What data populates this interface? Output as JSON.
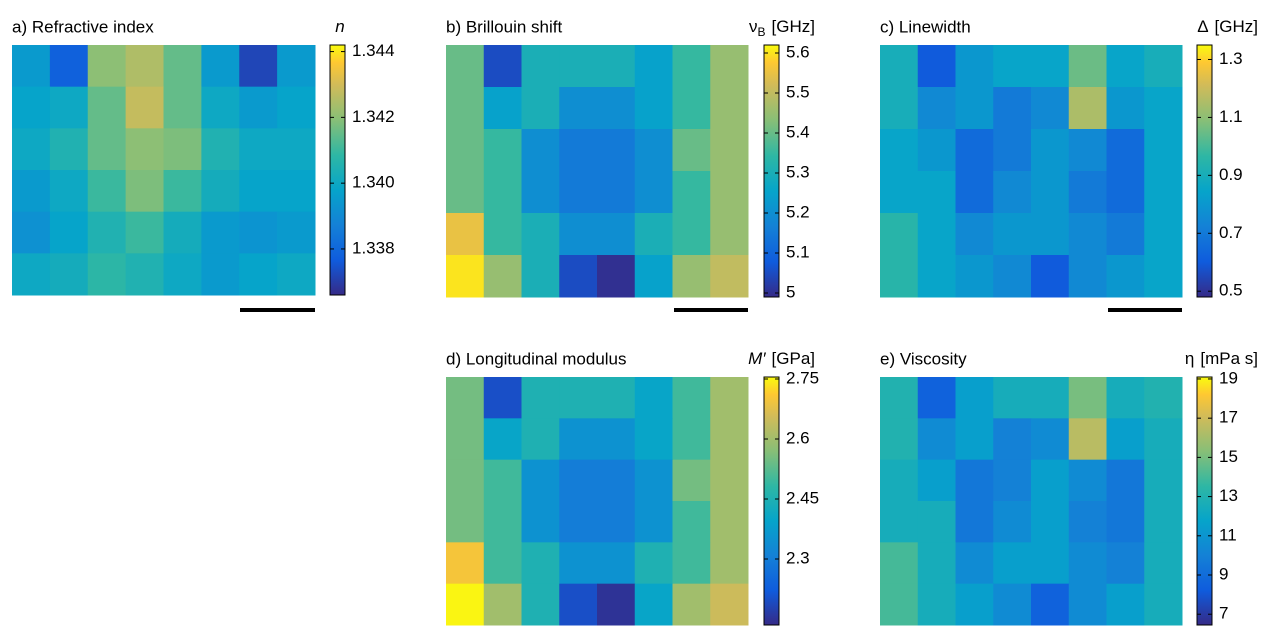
{
  "chart_data": [
    {
      "type": "heatmap",
      "title": "a) Refractive index",
      "colorbar_symbol": "n",
      "clim": [
        1.3366,
        1.3442
      ],
      "cticks": [
        {
          "value": 1.338,
          "label": "1.338"
        },
        {
          "value": 1.34,
          "label": "1.340"
        },
        {
          "value": 1.342,
          "label": "1.342"
        },
        {
          "value": 1.344,
          "label": "1.344"
        }
      ],
      "values": [
        [
          1.3395,
          1.3378,
          1.342,
          1.3425,
          1.3415,
          1.3395,
          1.3372,
          1.3395
        ],
        [
          1.3398,
          1.34,
          1.3415,
          1.3428,
          1.3415,
          1.34,
          1.3395,
          1.3398
        ],
        [
          1.34,
          1.3405,
          1.3415,
          1.342,
          1.3418,
          1.3405,
          1.34,
          1.34
        ],
        [
          1.3395,
          1.34,
          1.341,
          1.3418,
          1.341,
          1.3402,
          1.3398,
          1.3398
        ],
        [
          1.3392,
          1.3398,
          1.3405,
          1.341,
          1.3402,
          1.3395,
          1.3393,
          1.3395
        ],
        [
          1.34,
          1.3402,
          1.3408,
          1.3405,
          1.34,
          1.3395,
          1.3398,
          1.34
        ]
      ]
    },
    {
      "type": "heatmap",
      "title": "b) Brillouin shift",
      "colorbar_symbol": "ν",
      "colorbar_subscript": "B",
      "colorbar_unit": "[GHz]",
      "clim": [
        4.99,
        5.62
      ],
      "cticks": [
        5,
        5.1,
        5.2,
        5.3,
        5.4,
        5.5,
        5.6
      ],
      "values": [
        [
          5.4,
          5.05,
          5.3,
          5.3,
          5.3,
          5.25,
          5.35,
          5.45
        ],
        [
          5.4,
          5.25,
          5.3,
          5.2,
          5.2,
          5.25,
          5.35,
          5.45
        ],
        [
          5.4,
          5.35,
          5.2,
          5.15,
          5.15,
          5.2,
          5.4,
          5.45
        ],
        [
          5.4,
          5.35,
          5.2,
          5.15,
          5.15,
          5.2,
          5.35,
          5.45
        ],
        [
          5.55,
          5.35,
          5.3,
          5.2,
          5.2,
          5.3,
          5.35,
          5.45
        ],
        [
          5.6,
          5.45,
          5.3,
          5.05,
          5.0,
          5.25,
          5.45,
          5.5
        ]
      ]
    },
    {
      "type": "heatmap",
      "title": "c) Linewidth",
      "colorbar_symbol": "Δ",
      "colorbar_unit": "[GHz]",
      "clim": [
        0.48,
        1.35
      ],
      "cticks": [
        0.5,
        0.7,
        0.9,
        1.1,
        1.3
      ],
      "values": [
        [
          0.9,
          0.6,
          0.8,
          0.85,
          0.85,
          1.05,
          0.85,
          0.9
        ],
        [
          0.9,
          0.75,
          0.8,
          0.7,
          0.75,
          1.15,
          0.8,
          0.85
        ],
        [
          0.85,
          0.8,
          0.65,
          0.7,
          0.8,
          0.75,
          0.65,
          0.85
        ],
        [
          0.85,
          0.85,
          0.65,
          0.75,
          0.8,
          0.7,
          0.65,
          0.85
        ],
        [
          0.95,
          0.85,
          0.75,
          0.8,
          0.8,
          0.75,
          0.7,
          0.85
        ],
        [
          0.95,
          0.85,
          0.8,
          0.75,
          0.6,
          0.75,
          0.8,
          0.85
        ]
      ]
    },
    {
      "type": "heatmap",
      "title": "d) Longitudinal modulus",
      "colorbar_symbol": "M′",
      "colorbar_unit": "[GPa]",
      "clim": [
        2.135,
        2.755
      ],
      "cticks": [
        2.3,
        2.45,
        2.6,
        2.75
      ],
      "values": [
        [
          2.55,
          2.2,
          2.45,
          2.45,
          2.45,
          2.4,
          2.5,
          2.6
        ],
        [
          2.55,
          2.4,
          2.45,
          2.35,
          2.35,
          2.4,
          2.5,
          2.6
        ],
        [
          2.55,
          2.5,
          2.35,
          2.3,
          2.3,
          2.35,
          2.55,
          2.6
        ],
        [
          2.55,
          2.5,
          2.35,
          2.3,
          2.3,
          2.35,
          2.5,
          2.6
        ],
        [
          2.7,
          2.5,
          2.45,
          2.35,
          2.35,
          2.45,
          2.5,
          2.6
        ],
        [
          2.75,
          2.6,
          2.45,
          2.2,
          2.15,
          2.4,
          2.6,
          2.65
        ]
      ]
    },
    {
      "type": "heatmap",
      "title": "e) Viscosity",
      "colorbar_symbol": "η",
      "colorbar_unit": "[mPa s]",
      "clim": [
        6.45,
        19.1
      ],
      "cticks": [
        7,
        9,
        11,
        13,
        15,
        17,
        19
      ],
      "values": [
        [
          13,
          8.5,
          11.5,
          12.5,
          12.5,
          15,
          12.5,
          13
        ],
        [
          13,
          10.5,
          11.5,
          10,
          10.5,
          16.5,
          11.5,
          12.5
        ],
        [
          12.5,
          11.5,
          9.5,
          10,
          11.5,
          10.5,
          9.5,
          12.5
        ],
        [
          12.5,
          12.5,
          9.5,
          10.5,
          11.5,
          10,
          9.5,
          12.5
        ],
        [
          14,
          12.5,
          10.5,
          11.5,
          11.5,
          10.5,
          10,
          12.5
        ],
        [
          14,
          12.5,
          11.5,
          10.5,
          8.5,
          10.5,
          11.5,
          12.5
        ]
      ]
    }
  ]
}
